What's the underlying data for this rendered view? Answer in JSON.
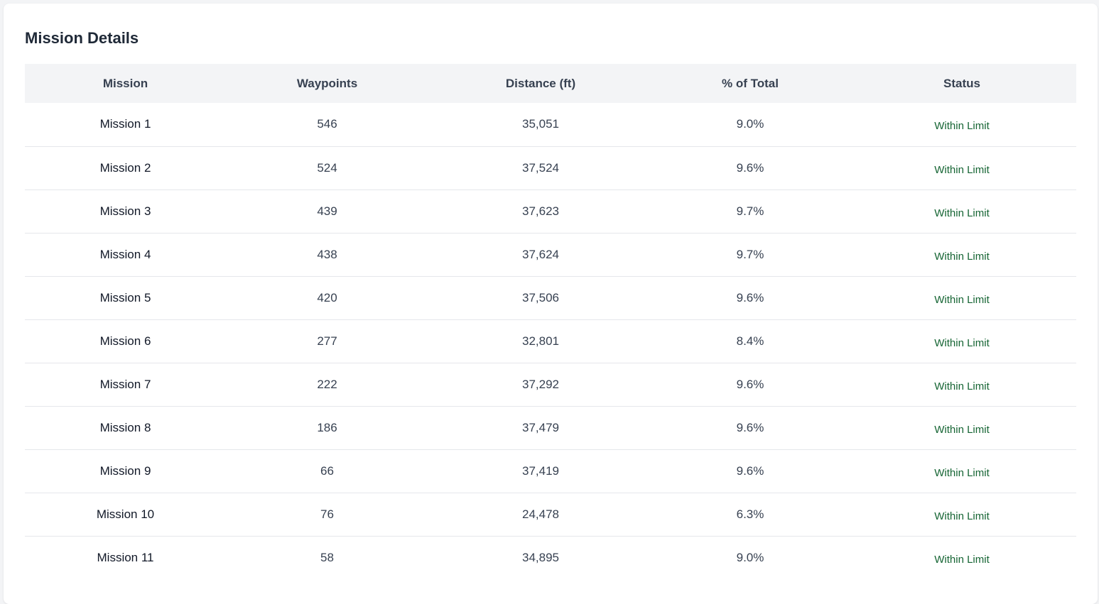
{
  "title": "Mission Details",
  "columns": [
    "Mission",
    "Waypoints",
    "Distance (ft)",
    "% of Total",
    "Status"
  ],
  "rows": [
    {
      "mission": "Mission 1",
      "waypoints": "546",
      "distance": "35,051",
      "pct": "9.0%",
      "status": "Within Limit"
    },
    {
      "mission": "Mission 2",
      "waypoints": "524",
      "distance": "37,524",
      "pct": "9.6%",
      "status": "Within Limit"
    },
    {
      "mission": "Mission 3",
      "waypoints": "439",
      "distance": "37,623",
      "pct": "9.7%",
      "status": "Within Limit"
    },
    {
      "mission": "Mission 4",
      "waypoints": "438",
      "distance": "37,624",
      "pct": "9.7%",
      "status": "Within Limit"
    },
    {
      "mission": "Mission 5",
      "waypoints": "420",
      "distance": "37,506",
      "pct": "9.6%",
      "status": "Within Limit"
    },
    {
      "mission": "Mission 6",
      "waypoints": "277",
      "distance": "32,801",
      "pct": "8.4%",
      "status": "Within Limit"
    },
    {
      "mission": "Mission 7",
      "waypoints": "222",
      "distance": "37,292",
      "pct": "9.6%",
      "status": "Within Limit"
    },
    {
      "mission": "Mission 8",
      "waypoints": "186",
      "distance": "37,479",
      "pct": "9.6%",
      "status": "Within Limit"
    },
    {
      "mission": "Mission 9",
      "waypoints": "66",
      "distance": "37,419",
      "pct": "9.6%",
      "status": "Within Limit"
    },
    {
      "mission": "Mission 10",
      "waypoints": "76",
      "distance": "24,478",
      "pct": "6.3%",
      "status": "Within Limit"
    },
    {
      "mission": "Mission 11",
      "waypoints": "58",
      "distance": "34,895",
      "pct": "9.0%",
      "status": "Within Limit"
    }
  ],
  "colors": {
    "status_ok": "#166534",
    "header_bg": "#f3f4f6"
  }
}
